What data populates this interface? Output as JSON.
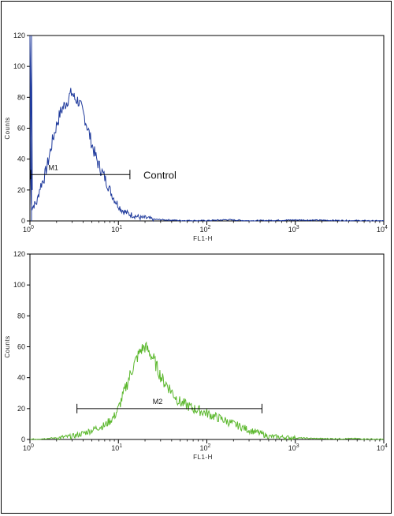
{
  "chart_data": [
    {
      "type": "line",
      "xlabel": "FL1-H",
      "ylabel": "Counts",
      "xscale": "log",
      "xlim": [
        1,
        10000
      ],
      "ylim": [
        0,
        120
      ],
      "xticks": [
        {
          "value": 1,
          "base": "10",
          "exp": "0"
        },
        {
          "value": 10,
          "base": "10",
          "exp": "1"
        },
        {
          "value": 100,
          "base": "10",
          "exp": "2"
        },
        {
          "value": 1000,
          "base": "10",
          "exp": "3"
        },
        {
          "value": 10000,
          "base": "10",
          "exp": "4"
        }
      ],
      "yticks": [
        "0",
        "20",
        "40",
        "60",
        "80",
        "100",
        "120"
      ],
      "color": "#1f3a9c",
      "series": [
        {
          "x": [
            1.0,
            1.02,
            1.05,
            1.1,
            1.2,
            1.3,
            1.45,
            1.6,
            1.8,
            2.0,
            2.2,
            2.4,
            2.6,
            2.8,
            3.0,
            3.2,
            3.5,
            3.8,
            4.2,
            4.6,
            5.0,
            5.5,
            6.0,
            6.5,
            7.0,
            7.5,
            8.0,
            9.0,
            10.0,
            11.0,
            12.5,
            14.0,
            16.0,
            18.0,
            20.0,
            25.0,
            30.0,
            50.0,
            100.0,
            170.0,
            300.0,
            1000.0,
            10000.0
          ],
          "y": [
            120,
            20,
            8,
            10,
            12,
            22,
            28,
            38,
            52,
            62,
            70,
            74,
            77,
            81,
            83,
            79,
            78,
            73,
            66,
            58,
            50,
            42,
            36,
            32,
            28,
            24,
            20,
            14,
            10,
            7,
            5,
            4,
            3,
            2,
            2,
            1,
            0.8,
            0.3,
            0.2,
            0.8,
            0.1,
            0.6,
            0
          ]
        }
      ],
      "gates": [
        {
          "label": "M1",
          "x_start": 1.02,
          "x_end": 13.5,
          "y": 30
        }
      ],
      "annotations": [
        {
          "text": "Control",
          "x": 15,
          "y": 30
        }
      ]
    },
    {
      "type": "line",
      "xlabel": "FL1-H",
      "ylabel": "Counts",
      "xscale": "log",
      "xlim": [
        1,
        10000
      ],
      "ylim": [
        0,
        120
      ],
      "xticks": [
        {
          "value": 1,
          "base": "10",
          "exp": "0"
        },
        {
          "value": 10,
          "base": "10",
          "exp": "1"
        },
        {
          "value": 100,
          "base": "10",
          "exp": "2"
        },
        {
          "value": 1000,
          "base": "10",
          "exp": "3"
        },
        {
          "value": 10000,
          "base": "10",
          "exp": "4"
        }
      ],
      "yticks": [
        "0",
        "20",
        "40",
        "60",
        "80",
        "100",
        "120"
      ],
      "color": "#5cb82e",
      "series": [
        {
          "x": [
            1.0,
            2.0,
            3.0,
            4.0,
            5.0,
            6.0,
            7.0,
            8.0,
            9.0,
            10.0,
            12.0,
            14.0,
            16.0,
            18.0,
            20.0,
            22.0,
            25.0,
            28.0,
            32.0,
            36.0,
            40.0,
            45.0,
            50.0,
            60.0,
            70.0,
            80.0,
            100.0,
            120.0,
            150.0,
            200.0,
            250.0,
            300.0,
            350.0,
            400.0,
            500.0,
            700.0,
            1000.0,
            2000.0,
            5000.0,
            10000.0
          ],
          "y": [
            0,
            1,
            2,
            4,
            6,
            8,
            9,
            12,
            15,
            20,
            33,
            44,
            52,
            58,
            60,
            57,
            52,
            45,
            38,
            35,
            31,
            27,
            24,
            22,
            20,
            19,
            17,
            15,
            13,
            10,
            8,
            6,
            5,
            4,
            2,
            1.5,
            1,
            0.5,
            0.5,
            0
          ]
        }
      ],
      "gates": [
        {
          "label": "M2",
          "x_start": 3.4,
          "x_end": 420,
          "y": 20
        }
      ]
    }
  ]
}
